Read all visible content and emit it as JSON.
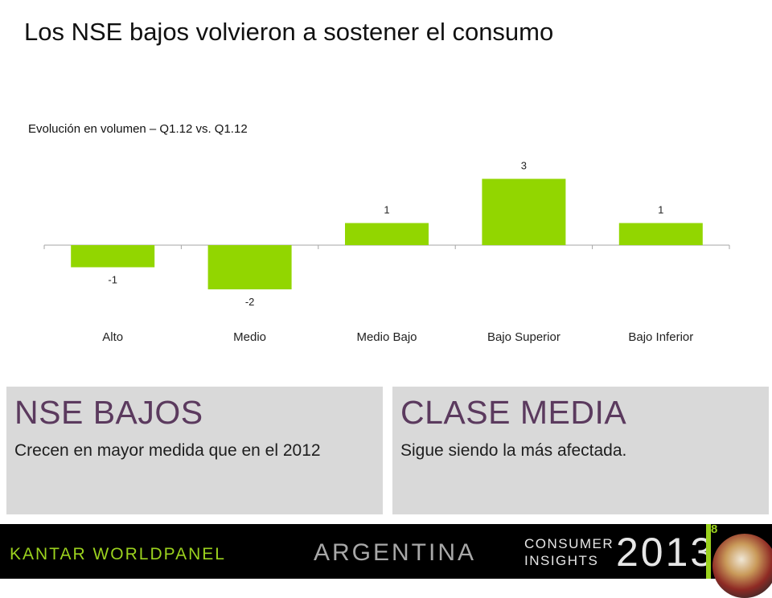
{
  "slide": {
    "title": "Los NSE bajos volvieron a sostener el consumo",
    "page_number": "8"
  },
  "chart_data": {
    "type": "bar",
    "title": "Evolución en volumen – Q1.12 vs. Q1.12",
    "categories": [
      "Alto",
      "Medio",
      "Medio Bajo",
      "Bajo Superior",
      "Bajo Inferior"
    ],
    "values": [
      -1,
      -2,
      1,
      3,
      1
    ],
    "data_labels": [
      "-1",
      "-2",
      "1",
      "3",
      "1"
    ],
    "xlabel": "",
    "ylabel": "",
    "ylim": [
      -2,
      3
    ],
    "grid": false,
    "legend": "none",
    "bar_color": "#92d600",
    "axis_color": "#a6a6a6"
  },
  "cards": [
    {
      "heading": "NSE BAJOS",
      "text": "Crecen en mayor medida que en el 2012"
    },
    {
      "heading": "CLASE MEDIA",
      "text": "Sigue siendo la más afectada."
    }
  ],
  "footer": {
    "logo": "KANTAR WORLDPANEL",
    "country": "ARGENTINA",
    "consumer": "CONSUMER",
    "insights": "INSIGHTS",
    "year": "2013",
    "accent_color": "#9bd21e"
  }
}
